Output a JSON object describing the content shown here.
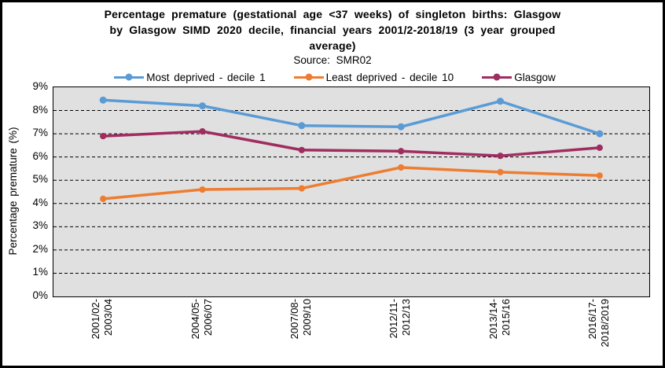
{
  "title": {
    "lines": [
      "Percentage premature (gestational age <37 weeks) of singleton births: Glasgow",
      "by Glasgow SIMD 2020 decile, financial years 2001/2-2018/19 (3 year grouped",
      "average)"
    ]
  },
  "source": "Source: SMR02",
  "legend": {
    "items": [
      {
        "label": "Most deprived - decile 1",
        "color": "#5B9BD5"
      },
      {
        "label": "Least deprived - decile 10",
        "color": "#ED7D31"
      },
      {
        "label": "Glasgow",
        "color": "#A02D5F"
      }
    ]
  },
  "y_axis": {
    "title": "Percentage premature (%)",
    "tick_labels": [
      "0%",
      "1%",
      "2%",
      "3%",
      "4%",
      "5%",
      "6%",
      "7%",
      "8%",
      "9%"
    ]
  },
  "colors": {
    "plot_background": "#E0E0E0",
    "grid": "#000000",
    "frame": "#000000"
  },
  "chart_data": {
    "type": "line",
    "title": "Percentage premature (gestational age <37 weeks) of singleton births: Glasgow by Glasgow SIMD 2020 decile, financial years 2001/2-2018/19 (3 year grouped average)",
    "subtitle": "Source: SMR02",
    "categories": [
      "2001/02-2003/04",
      "2004/05-2006/07",
      "2007/08-2009/10",
      "2012/11-2012/13",
      "2013/14-2015/16",
      "2016/17-2018/2019"
    ],
    "series": [
      {
        "name": "Most deprived - decile 1",
        "color": "#5B9BD5",
        "values": [
          8.45,
          8.2,
          7.35,
          7.3,
          8.4,
          7.0
        ]
      },
      {
        "name": "Least deprived - decile 10",
        "color": "#ED7D31",
        "values": [
          4.2,
          4.6,
          4.65,
          5.55,
          5.35,
          5.2
        ]
      },
      {
        "name": "Glasgow",
        "color": "#A02D5F",
        "values": [
          6.9,
          7.1,
          6.3,
          6.25,
          6.05,
          6.4
        ]
      }
    ],
    "xlabel": "",
    "ylabel": "Percentage premature (%)",
    "ylim": [
      0,
      9
    ],
    "ytick_step": 1,
    "ytick_format": "percent",
    "grid": true,
    "grid_style": "dashed",
    "legend_position": "top",
    "plot_background": "#E0E0E0",
    "marker": "circle"
  }
}
